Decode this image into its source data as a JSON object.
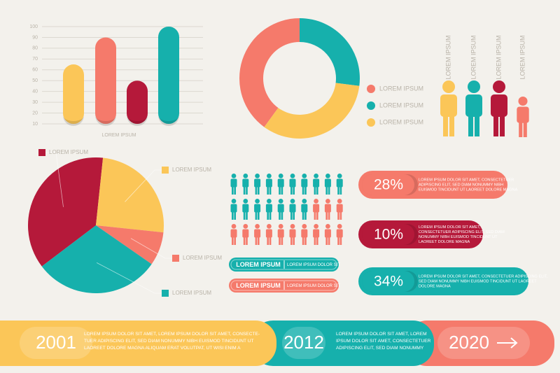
{
  "chart_data": [
    {
      "type": "bar",
      "x_label": "LOREM IPSUM",
      "categories": [
        null,
        null,
        null,
        null
      ],
      "values": [
        65,
        90,
        50,
        100
      ],
      "colors": [
        "#fbc658",
        "#f57a6b",
        "#b5193a",
        "#16b0ac"
      ],
      "ylim": [
        10,
        100
      ],
      "yticks": [
        10,
        20,
        30,
        40,
        50,
        60,
        70,
        80,
        90,
        100
      ],
      "grid": true
    },
    {
      "type": "donut",
      "categories": [
        "LOREM IPSUM",
        "LOREM IPSUM",
        "LOREM IPSUM"
      ],
      "values": [
        40,
        27,
        33
      ],
      "colors": [
        "#f57a6b",
        "#16b0ac",
        "#fbc658"
      ],
      "legend": "right"
    },
    {
      "type": "pie",
      "categories": [
        "LOREM IPSUM",
        "LOREM IPSUM",
        "LOREM IPSUM",
        "LOREM IPSUM"
      ],
      "values": [
        37,
        25,
        8,
        30
      ],
      "colors": [
        "#b5193a",
        "#fbc658",
        "#f57a6b",
        "#16b0ac"
      ]
    }
  ],
  "people": {
    "labels": [
      "LOREM IPSUM",
      "LOREM IPSUM",
      "LOREM IPSUM",
      "LOREM IPSUM"
    ],
    "colors": [
      "#fbc658",
      "#16b0ac",
      "#b5193a",
      "#f57a6b"
    ]
  },
  "badges": [
    {
      "title": "LOREM IPSUM",
      "text": "LOREM IPSUM DOLOR SIT",
      "color": "#16b0ac"
    },
    {
      "title": "LOREM IPSUM",
      "text": "LOREM IPSUM DOLOR SIT",
      "color": "#f57a6b"
    }
  ],
  "stats": [
    {
      "value": "28%",
      "color": "#f57a6b",
      "lines": [
        "LOREM IPSUM DOLOR SIT AMET, CONSECTETUER",
        "ADIPISCING ELIT, SED DIAM NONUMMY NIBH",
        "EUISMOD TINCIDUNT UT LAOREET DOLORE MAGNA"
      ]
    },
    {
      "value": "10%",
      "color": "#b5193a",
      "lines": [
        "LOREM IPSUM DOLOR SIT AMET,",
        "CONSECTETUER ADIPISCING ELIT, SED DIAM",
        "NONUMMY NIBH EUISMOD TINCIDUNT UT",
        "LAOREET DOLORE MAGNA"
      ]
    },
    {
      "value": "34%",
      "color": "#16b0ac",
      "lines": [
        "LOREM IPSUM DOLOR SIT AMET, CONSECTETUER ADIPISCING ELIT,",
        "SED DIAM NONUMMY NIBH EUISMOD TINCIDUNT UT LAOREET",
        "DOLORE MAGNA"
      ]
    }
  ],
  "timeline": [
    {
      "year": "2001",
      "lines": [
        "LOREM IPSUM DOLOR SIT AMET, LOREM IPSUM DOLOR SIT AMET, CONSECTE-",
        "TUER ADIPISCING ELIT, SED DIAM NONUMMY NIBH EUISMOD TINCIDUNT UT",
        "LAOREET DOLORE MAGNA ALIQUAM ERAT VOLUTPAT, UT WISI ENIM A"
      ]
    },
    {
      "year": "2012",
      "lines": [
        "LOREM IPSUM DOLOR SIT AMET, LOREM",
        "IPSUM DOLOR SIT AMET, CONSECTETUER",
        "ADIPISCING ELIT, SED DIAM NONUMMY"
      ]
    },
    {
      "year": "2020"
    }
  ]
}
